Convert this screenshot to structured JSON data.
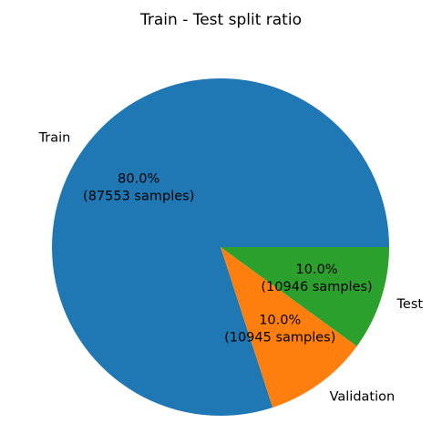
{
  "chart_data": {
    "type": "pie",
    "title": "Train - Test split ratio",
    "slices": [
      {
        "label": "Train",
        "value": 87553,
        "percent_text": "80.0%",
        "samples_text": "(87553 samples)",
        "color": "#1f77b4"
      },
      {
        "label": "Validation",
        "value": 10945,
        "percent_text": "10.0%",
        "samples_text": "(10945 samples)",
        "color": "#ff7f0e"
      },
      {
        "label": "Test",
        "value": 10946,
        "percent_text": "10.0%",
        "samples_text": "(10946 samples)",
        "color": "#2ca02c"
      }
    ],
    "start_angle_deg": 0,
    "direction": "counterclockwise",
    "legend": "none"
  }
}
